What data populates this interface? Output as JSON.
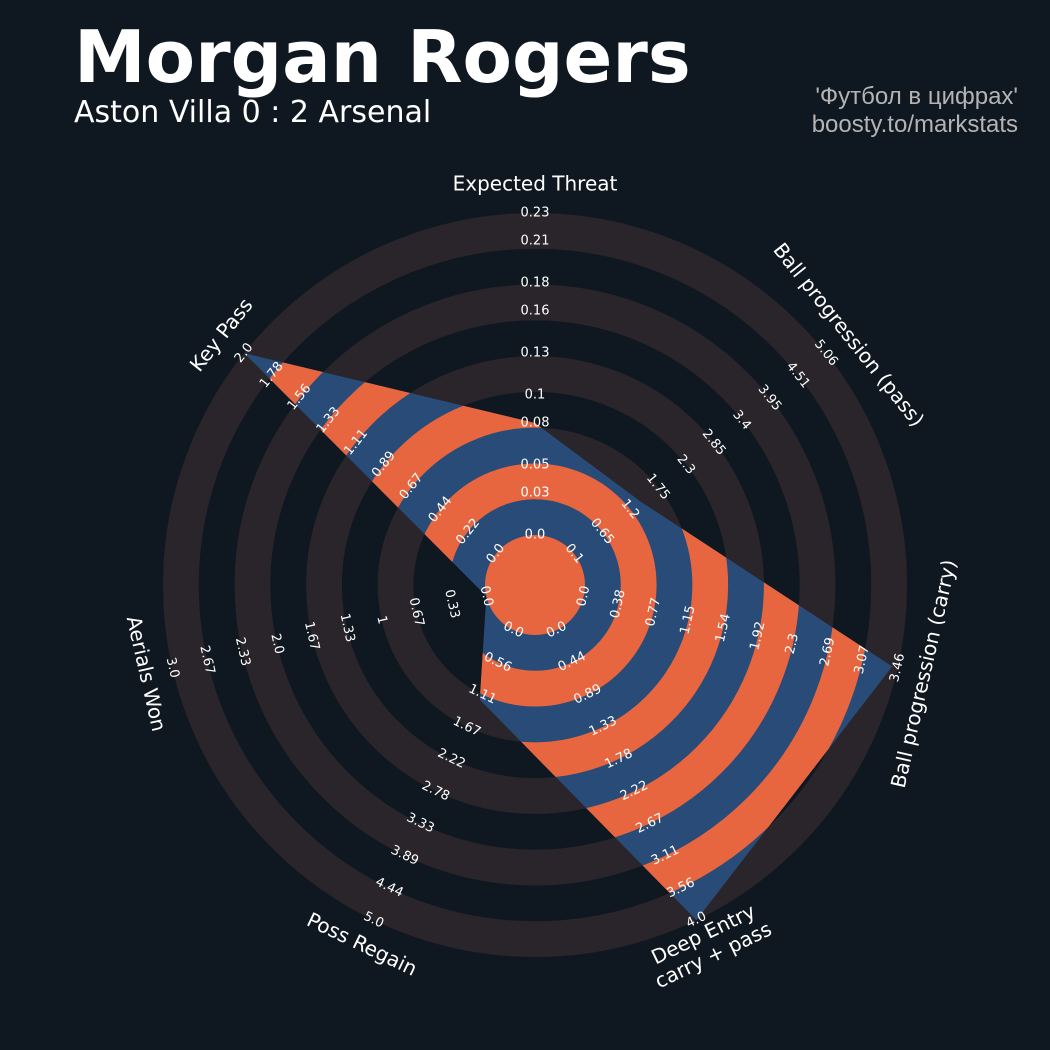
{
  "chart_data": {
    "type": "radar",
    "title": "Morgan Rogers",
    "subtitle": "Aston Villa 0 : 2 Arsenal",
    "credits": [
      "'Футбол в цифрах'",
      "boosty.to/markstats"
    ],
    "categories": [
      "Expected Threat",
      "Ball progression (pass)",
      "Ball progression (carry)",
      "Deep Entry\ncarry + pass",
      "Poss Regain",
      "Aerials Won",
      "Key Pass"
    ],
    "ranges": [
      [
        0,
        0.23
      ],
      [
        0.1,
        5.06
      ],
      [
        0,
        3.46
      ],
      [
        0,
        4
      ],
      [
        0,
        5
      ],
      [
        0,
        3
      ],
      [
        0,
        2
      ]
    ],
    "ticks": [
      [
        {
          "value": 0,
          "label": "0.0"
        },
        0.03,
        0.05,
        0.08,
        0.1,
        0.13,
        0.16,
        0.18,
        0.21,
        0.23
      ],
      [
        0.1,
        0.65,
        1.2,
        1.75,
        2.3,
        2.85,
        3.4,
        3.95,
        4.51,
        5.06
      ],
      [
        {
          "value": 0,
          "label": "0.0"
        },
        0.38,
        0.77,
        1.15,
        1.54,
        1.92,
        2.3,
        2.69,
        3.07,
        3.46
      ],
      [
        {
          "value": 0,
          "label": "0.0"
        },
        0.44,
        0.89,
        1.33,
        1.78,
        2.22,
        2.67,
        3.11,
        3.56,
        {
          "value": 4,
          "label": "4.0"
        }
      ],
      [
        {
          "value": 0,
          "label": "0.0"
        },
        0.56,
        1.11,
        1.67,
        2.22,
        2.78,
        3.33,
        3.89,
        4.44,
        {
          "value": 5,
          "label": "5.0"
        }
      ],
      [
        {
          "value": 0,
          "label": "0.0"
        },
        0.33,
        0.67,
        1.0,
        1.33,
        1.67,
        {
          "value": 2,
          "label": "2.0"
        },
        2.33,
        2.67,
        {
          "value": 3,
          "label": "3.0"
        }
      ],
      [
        {
          "value": 0,
          "label": "0.0"
        },
        0.22,
        0.44,
        0.67,
        0.89,
        1.11,
        1.33,
        1.56,
        1.78,
        {
          "value": 2,
          "label": "2.0"
        }
      ]
    ],
    "values": [
      0.08,
      1.4,
      3.4,
      4.0,
      1.2,
      0.0,
      2.0
    ],
    "color": "#284b78",
    "ring_color": "#e8663f",
    "background_ring_color": "#29252b",
    "background_color": "#0f1820"
  }
}
